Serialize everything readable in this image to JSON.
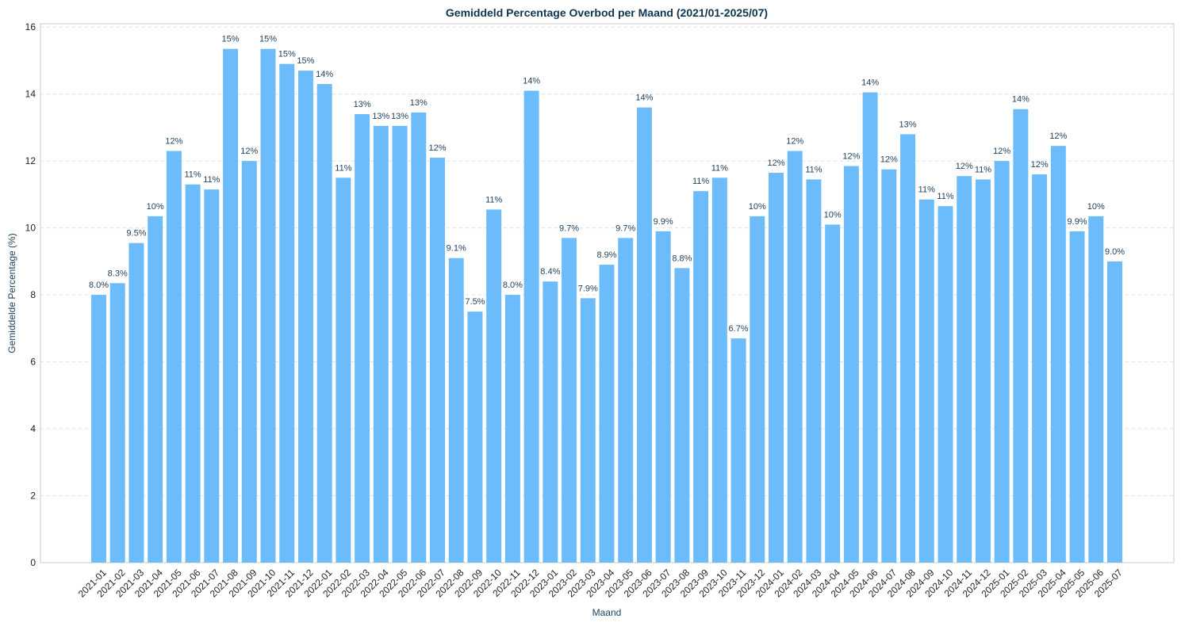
{
  "chart_data": {
    "type": "bar",
    "title": "Gemiddeld Percentage Overbod per Maand (2021/01-2025/07)",
    "xlabel": "Maand",
    "ylabel": "Gemiddelde Percentage (%)",
    "ylim": [
      0,
      16.1
    ],
    "yticks": [
      "0",
      "2",
      "4",
      "6",
      "8",
      "10",
      "12",
      "14",
      "16"
    ],
    "grid": true,
    "bar_color": "#6cbcfc",
    "categories": [
      "2021-01",
      "2021-02",
      "2021-03",
      "2021-04",
      "2021-05",
      "2021-06",
      "2021-07",
      "2021-08",
      "2021-09",
      "2021-10",
      "2021-11",
      "2021-12",
      "2022-01",
      "2022-02",
      "2022-03",
      "2022-04",
      "2022-05",
      "2022-06",
      "2022-07",
      "2022-08",
      "2022-09",
      "2022-10",
      "2022-11",
      "2022-12",
      "2023-01",
      "2023-02",
      "2023-03",
      "2023-04",
      "2023-05",
      "2023-06",
      "2023-07",
      "2023-08",
      "2023-09",
      "2023-10",
      "2023-11",
      "2023-12",
      "2024-01",
      "2024-02",
      "2024-03",
      "2024-04",
      "2024-05",
      "2024-06",
      "2024-07",
      "2024-08",
      "2024-09",
      "2024-10",
      "2024-11",
      "2024-12",
      "2025-01",
      "2025-02",
      "2025-03",
      "2025-04",
      "2025-05",
      "2025-06",
      "2025-07"
    ],
    "values": [
      8.0,
      8.35,
      9.55,
      10.35,
      12.3,
      11.3,
      11.15,
      15.35,
      12.0,
      15.35,
      14.9,
      14.7,
      14.3,
      11.5,
      13.4,
      13.05,
      13.05,
      13.45,
      12.1,
      9.1,
      7.5,
      10.55,
      8.0,
      14.1,
      8.4,
      9.7,
      7.9,
      8.9,
      9.7,
      13.6,
      9.9,
      8.8,
      11.1,
      11.5,
      6.7,
      10.35,
      11.65,
      12.3,
      11.45,
      10.1,
      11.85,
      14.05,
      11.75,
      12.8,
      10.85,
      10.65,
      11.55,
      11.45,
      12.0,
      13.55,
      11.6,
      12.45,
      9.9,
      10.35,
      9.0
    ],
    "labels": [
      "8.0%",
      "8.3%",
      "9.5%",
      "10%",
      "12%",
      "11%",
      "11%",
      "15%",
      "12%",
      "15%",
      "15%",
      "15%",
      "14%",
      "11%",
      "13%",
      "13%",
      "13%",
      "13%",
      "12%",
      "9.1%",
      "7.5%",
      "11%",
      "8.0%",
      "14%",
      "8.4%",
      "9.7%",
      "7.9%",
      "8.9%",
      "9.7%",
      "14%",
      "9.9%",
      "8.8%",
      "11%",
      "11%",
      "6.7%",
      "10%",
      "12%",
      "12%",
      "11%",
      "10%",
      "12%",
      "14%",
      "12%",
      "13%",
      "11%",
      "11%",
      "12%",
      "11%",
      "12%",
      "14%",
      "12%",
      "12%",
      "9.9%",
      "10%",
      "9.0%"
    ]
  }
}
